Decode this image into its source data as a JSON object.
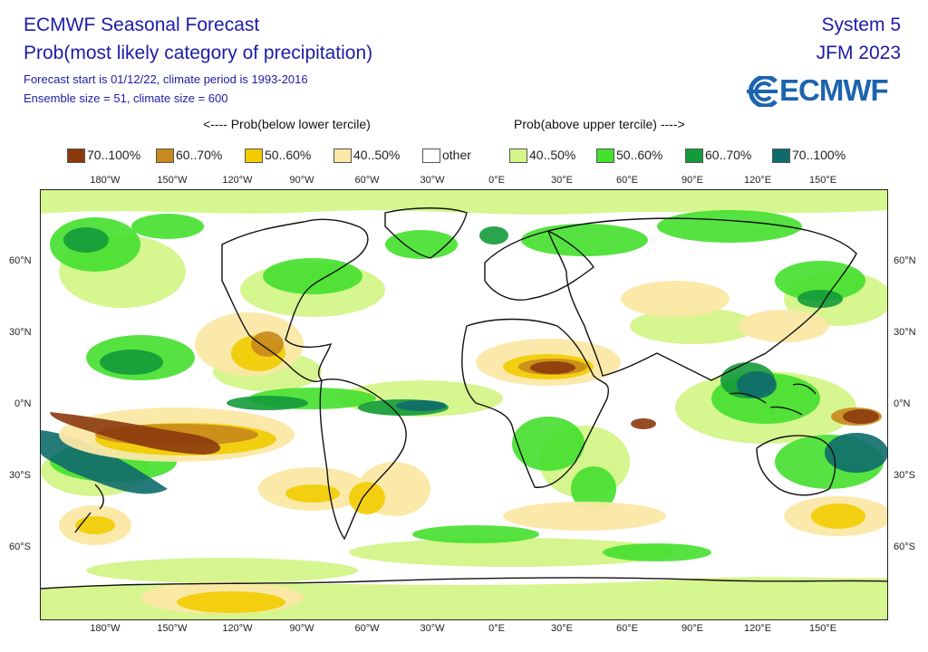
{
  "title": {
    "line1": "ECMWF Seasonal Forecast",
    "line2": "Prob(most likely category of precipitation)",
    "line3": "Forecast start is 01/12/22, climate period is 1993-2016",
    "line4": "Ensemble size = 51, climate size = 600",
    "system": "System 5",
    "period": "JFM 2023"
  },
  "logo": {
    "text": "ECMWF",
    "color": "#1d64ae"
  },
  "legend_header": {
    "left": "<---- Prob(below lower tercile)",
    "right": "Prob(above upper tercile) ---->"
  },
  "legend": [
    {
      "label": "70..100%",
      "color": "#8b3a0e"
    },
    {
      "label": "60..70%",
      "color": "#c88a1c"
    },
    {
      "label": "50..60%",
      "color": "#f2cc00"
    },
    {
      "label": "40..50%",
      "color": "#fbe8a6"
    },
    {
      "label": "other",
      "color": "#ffffff"
    },
    {
      "label": "40..50%",
      "color": "#d4f58a"
    },
    {
      "label": "50..60%",
      "color": "#44e02e"
    },
    {
      "label": "60..70%",
      "color": "#139a3a"
    },
    {
      "label": "70..100%",
      "color": "#0f6b6b"
    }
  ],
  "lon_labels": [
    "180°W",
    "150°W",
    "120°W",
    "90°W",
    "60°W",
    "30°W",
    "0°E",
    "30°E",
    "60°E",
    "90°E",
    "120°E",
    "150°E"
  ],
  "lat_labels": [
    "60°N",
    "30°N",
    "0°N",
    "30°S",
    "60°S"
  ]
}
